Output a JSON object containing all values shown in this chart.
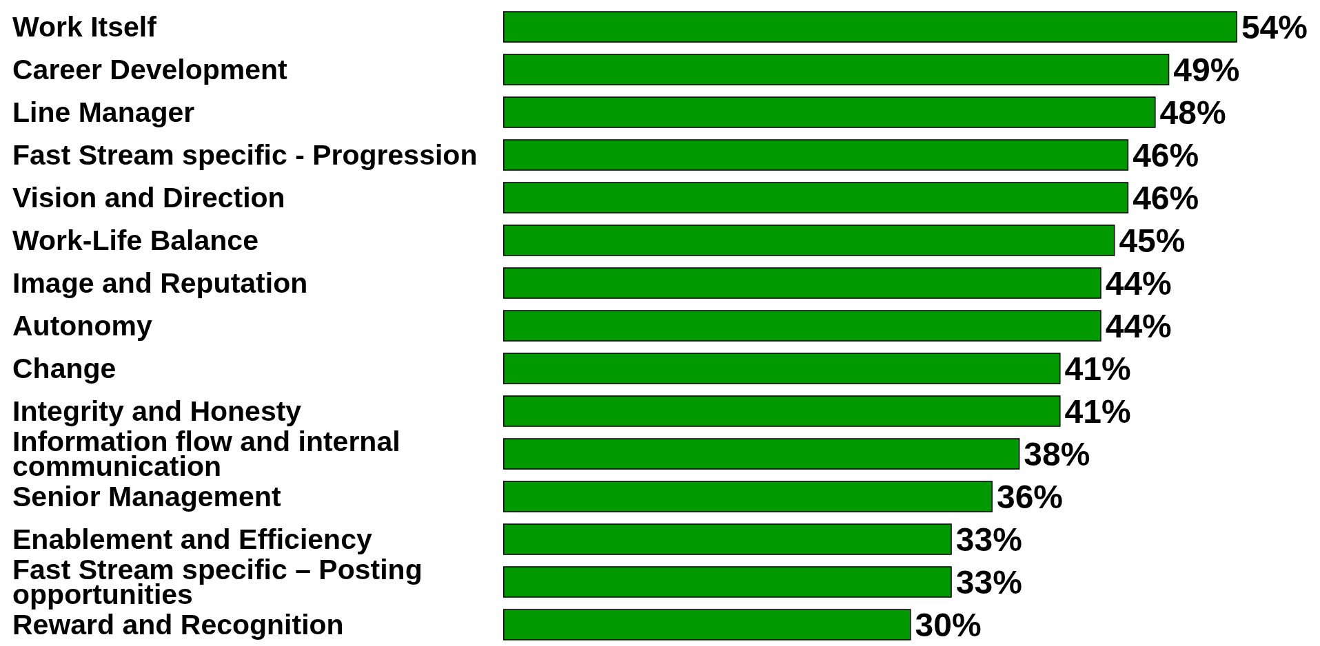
{
  "chart_data": {
    "type": "bar",
    "orientation": "horizontal",
    "categories": [
      "Work Itself",
      "Career Development",
      "Line Manager",
      "Fast Stream specific - Progression",
      "Vision and Direction",
      "Work-Life Balance",
      "Image and Reputation",
      "Autonomy",
      "Change",
      "Integrity and Honesty",
      "Information flow and internal communication",
      "Senior Management",
      "Enablement and Efficiency",
      "Fast Stream specific – Posting opportunities",
      "Reward and Recognition"
    ],
    "values": [
      54,
      49,
      48,
      46,
      46,
      45,
      44,
      44,
      41,
      41,
      38,
      36,
      33,
      33,
      30
    ],
    "color": "#009900",
    "value_labels": [
      "54%",
      "49%",
      "48%",
      "46%",
      "46%",
      "45%",
      "44%",
      "44%",
      "41%",
      "41%",
      "38%",
      "36%",
      "33%",
      "33%",
      "30%"
    ],
    "grid": false
  }
}
